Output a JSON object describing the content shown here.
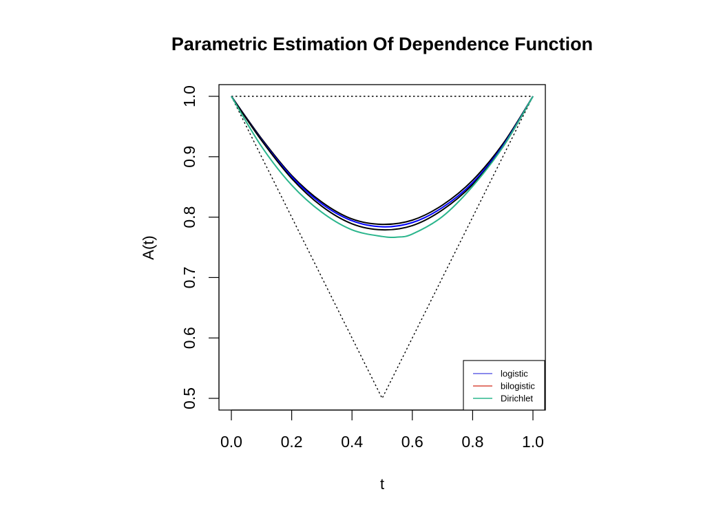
{
  "chart_data": {
    "type": "line",
    "title": "Parametric Estimation Of Dependence Function",
    "xlabel": "t",
    "ylabel": "A(t)",
    "xlim": [
      0.0,
      1.0
    ],
    "ylim": [
      0.5,
      1.0
    ],
    "x_ticks": [
      "0.0",
      "0.2",
      "0.4",
      "0.6",
      "0.8",
      "1.0"
    ],
    "y_ticks": [
      "0.5",
      "0.6",
      "0.7",
      "0.8",
      "0.9",
      "1.0"
    ],
    "grid": false,
    "legend_position": "bottom-right",
    "reference_lines": [
      {
        "style": "dotted",
        "color": "#000000",
        "x": [
          0.0,
          1.0
        ],
        "y": [
          1.0,
          1.0
        ]
      },
      {
        "style": "dotted",
        "color": "#000000",
        "x": [
          0.0,
          0.5,
          1.0
        ],
        "y": [
          1.0,
          0.5,
          1.0
        ]
      }
    ],
    "series": [
      {
        "name": "logistic",
        "color": "#0000ff",
        "legend_color": "#6464e6",
        "x": [
          0.0,
          0.1,
          0.2,
          0.3,
          0.4,
          0.5,
          0.6,
          0.7,
          0.8,
          0.9,
          1.0
        ],
        "y": [
          1.0,
          0.928,
          0.867,
          0.822,
          0.794,
          0.784,
          0.791,
          0.816,
          0.857,
          0.918,
          1.0
        ]
      },
      {
        "name": "bilogistic",
        "color": "#000000",
        "legend_color": "#d94a3d",
        "x": [
          0.0,
          0.1,
          0.2,
          0.3,
          0.4,
          0.5,
          0.6,
          0.7,
          0.8,
          0.9,
          1.0
        ],
        "y": [
          1.0,
          0.927,
          0.864,
          0.818,
          0.789,
          0.779,
          0.786,
          0.812,
          0.854,
          0.916,
          1.0
        ]
      },
      {
        "name": "Dirichlet",
        "color": "#2ab58c",
        "legend_color": "#2ab58c",
        "x": [
          0.0,
          0.1,
          0.2,
          0.3,
          0.4,
          0.5,
          0.55,
          0.6,
          0.7,
          0.8,
          0.9,
          1.0
        ],
        "y": [
          1.0,
          0.917,
          0.853,
          0.808,
          0.779,
          0.768,
          0.767,
          0.772,
          0.801,
          0.851,
          0.916,
          1.0
        ]
      }
    ],
    "extra_lines": [
      {
        "color": "#000000",
        "x": [
          0.0,
          0.1,
          0.2,
          0.3,
          0.4,
          0.5,
          0.6,
          0.7,
          0.8,
          0.9,
          1.0
        ],
        "y": [
          1.0,
          0.93,
          0.869,
          0.825,
          0.797,
          0.788,
          0.795,
          0.82,
          0.861,
          0.921,
          1.0
        ]
      }
    ]
  }
}
